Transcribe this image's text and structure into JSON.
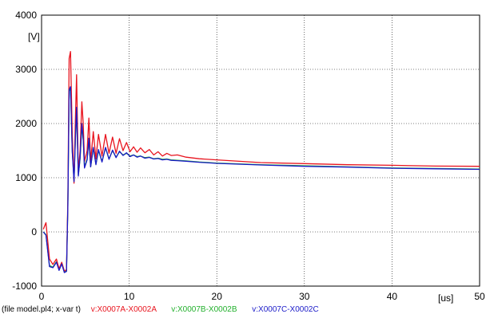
{
  "chart_data": {
    "type": "line",
    "title": "",
    "xlabel": "",
    "ylabel": "",
    "xlim": [
      0,
      50
    ],
    "ylim": [
      -1000,
      4000
    ],
    "x_ticks": [
      0,
      10,
      20,
      30,
      40,
      50
    ],
    "y_ticks": [
      -1000,
      0,
      1000,
      2000,
      3000,
      4000
    ],
    "x_unit": "[us]",
    "y_unit": "[V]",
    "grid": true,
    "file_label": "(file model.pl4; x-var t)",
    "series": [
      {
        "name": "v:X0007A-X0002A",
        "color": "#e8141e",
        "x": [
          0.2,
          0.5,
          0.9,
          1.3,
          1.7,
          2.0,
          2.3,
          2.6,
          2.85,
          3.0,
          3.15,
          3.3,
          3.5,
          3.7,
          3.85,
          4.0,
          4.2,
          4.4,
          4.6,
          4.75,
          4.9,
          5.2,
          5.4,
          5.6,
          5.9,
          6.2,
          6.5,
          6.9,
          7.3,
          7.7,
          8.1,
          8.5,
          8.9,
          9.3,
          9.7,
          10.1,
          10.5,
          10.9,
          11.3,
          11.8,
          12.3,
          12.8,
          13.3,
          13.8,
          14.3,
          14.8,
          15.5,
          16.5,
          18,
          20,
          25,
          30,
          35,
          40,
          45,
          50
        ],
        "values": [
          50,
          170,
          -500,
          -600,
          -500,
          -680,
          -560,
          -720,
          -700,
          600,
          3200,
          3330,
          1800,
          900,
          2000,
          2900,
          1100,
          1500,
          2400,
          2000,
          1300,
          1500,
          2100,
          1300,
          1850,
          1350,
          1800,
          1400,
          1800,
          1450,
          1750,
          1450,
          1720,
          1500,
          1650,
          1480,
          1570,
          1470,
          1550,
          1460,
          1520,
          1420,
          1480,
          1400,
          1450,
          1410,
          1420,
          1380,
          1350,
          1330,
          1280,
          1260,
          1240,
          1230,
          1215,
          1210
        ]
      },
      {
        "name": "v:X0007B-X0002B",
        "color": "#22b02c",
        "x": [
          0.2,
          0.5,
          0.9,
          1.3,
          1.7,
          2.0,
          2.3,
          2.6,
          2.85,
          3.0,
          3.15,
          3.3,
          3.5,
          3.7,
          3.85,
          4.0,
          4.2,
          4.4,
          4.6,
          4.75,
          4.9,
          5.2,
          5.4,
          5.6,
          5.9,
          6.2,
          6.5,
          6.9,
          7.3,
          7.7,
          8.1,
          8.5,
          8.9,
          9.3,
          9.7,
          10.1,
          10.5,
          10.9,
          11.3,
          11.8,
          12.3,
          12.8,
          13.3,
          13.8,
          14.3,
          14.8,
          15.5,
          16.5,
          18,
          20,
          25,
          30,
          35,
          40,
          45,
          50
        ],
        "values": [
          0,
          -50,
          -620,
          -650,
          -550,
          -700,
          -580,
          -740,
          -720,
          500,
          2600,
          2650,
          1500,
          950,
          1650,
          2250,
          1050,
          1350,
          1950,
          1700,
          1200,
          1350,
          1700,
          1200,
          1550,
          1250,
          1500,
          1300,
          1550,
          1350,
          1500,
          1380,
          1480,
          1420,
          1450,
          1400,
          1420,
          1390,
          1400,
          1370,
          1380,
          1350,
          1360,
          1340,
          1345,
          1330,
          1320,
          1310,
          1290,
          1270,
          1240,
          1220,
          1200,
          1180,
          1170,
          1160
        ]
      },
      {
        "name": "v:X0007C-X0002C",
        "color": "#1a1ac8",
        "x": [
          0.2,
          0.5,
          0.9,
          1.3,
          1.7,
          2.0,
          2.3,
          2.6,
          2.85,
          3.0,
          3.15,
          3.3,
          3.5,
          3.7,
          3.85,
          4.0,
          4.2,
          4.4,
          4.6,
          4.75,
          4.9,
          5.2,
          5.4,
          5.6,
          5.9,
          6.2,
          6.5,
          6.9,
          7.3,
          7.7,
          8.1,
          8.5,
          8.9,
          9.3,
          9.7,
          10.1,
          10.5,
          10.9,
          11.3,
          11.8,
          12.3,
          12.8,
          13.3,
          13.8,
          14.3,
          14.8,
          15.5,
          16.5,
          18,
          20,
          25,
          30,
          35,
          40,
          45,
          50
        ],
        "values": [
          0,
          -60,
          -640,
          -660,
          -560,
          -710,
          -590,
          -750,
          -730,
          480,
          2620,
          2680,
          1480,
          930,
          1680,
          2300,
          1030,
          1380,
          2000,
          1720,
          1180,
          1330,
          1730,
          1200,
          1560,
          1240,
          1520,
          1290,
          1560,
          1340,
          1510,
          1370,
          1490,
          1410,
          1460,
          1390,
          1420,
          1380,
          1400,
          1360,
          1375,
          1345,
          1355,
          1330,
          1340,
          1320,
          1315,
          1305,
          1285,
          1265,
          1235,
          1210,
          1195,
          1175,
          1165,
          1155
        ]
      }
    ]
  }
}
